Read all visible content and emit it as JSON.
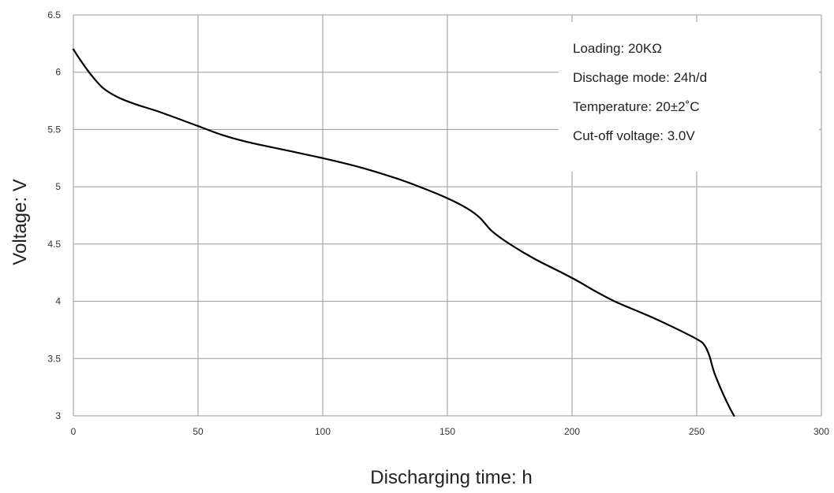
{
  "chart_data": {
    "type": "line",
    "title": "",
    "xlabel": "Discharging time: h",
    "ylabel": "Voltage: V",
    "xlim": [
      0,
      300
    ],
    "ylim": [
      3,
      6.5
    ],
    "xticks": [
      0,
      50,
      100,
      150,
      200,
      250,
      300
    ],
    "yticks": [
      3,
      3.5,
      4,
      4.5,
      5,
      5.5,
      6,
      6.5
    ],
    "xtick_labels": [
      "0",
      "50",
      "100",
      "150",
      "200",
      "250",
      "300"
    ],
    "ytick_labels": [
      "3",
      "3.5",
      "4",
      "4.5",
      "5",
      "5.5",
      "6",
      "6.5"
    ],
    "grid": true,
    "series": [
      {
        "color": "#000000",
        "x": [
          0,
          3,
          7,
          12,
          18,
          25,
          35,
          50,
          60,
          70,
          85,
          100,
          115,
          130,
          140,
          150,
          158,
          163,
          168,
          175,
          185,
          195,
          202,
          210,
          218,
          230,
          240,
          250,
          253,
          255,
          257,
          260,
          263,
          265
        ],
        "y": [
          6.2,
          6.1,
          5.98,
          5.86,
          5.78,
          5.72,
          5.65,
          5.53,
          5.45,
          5.39,
          5.32,
          5.25,
          5.17,
          5.07,
          4.99,
          4.9,
          4.81,
          4.73,
          4.61,
          4.5,
          4.37,
          4.26,
          4.18,
          4.08,
          3.99,
          3.88,
          3.78,
          3.67,
          3.62,
          3.53,
          3.38,
          3.22,
          3.08,
          3.0
        ]
      }
    ],
    "annotations": [
      "Loading: 20KΩ",
      "Dischage mode: 24h/d",
      "Temperature: 20±2˚C",
      "Cut-off voltage: 3.0V"
    ]
  }
}
